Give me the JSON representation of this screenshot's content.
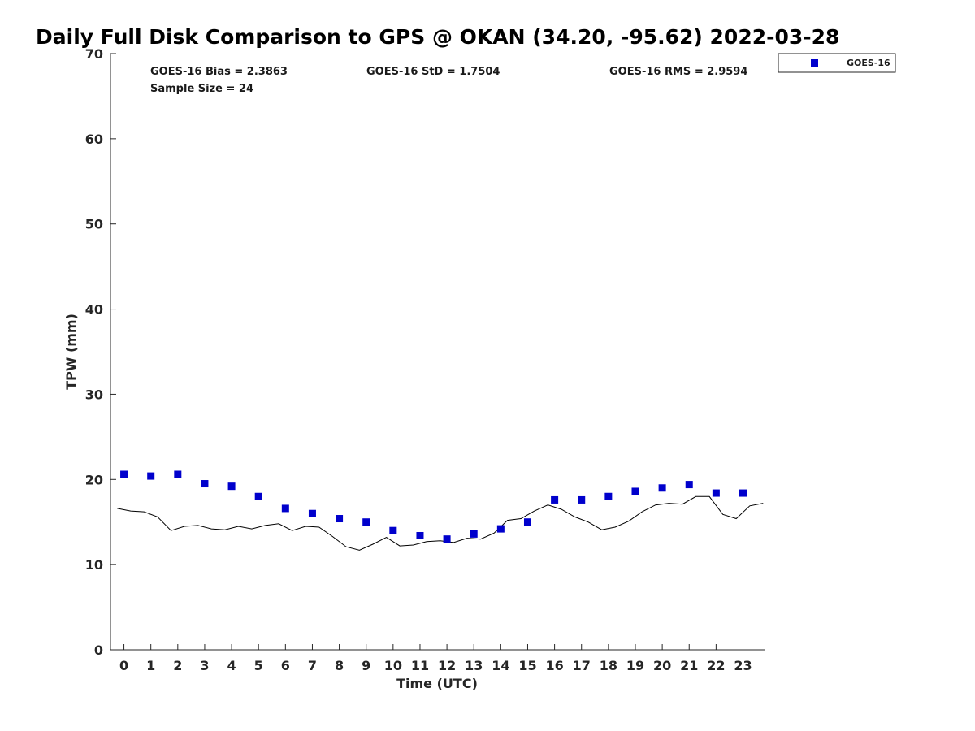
{
  "chart_data": {
    "type": "scatter",
    "title": "Daily Full Disk Comparison to GPS @ OKAN (34.20, -95.62) 2022-03-28",
    "xlabel": "Time (UTC)",
    "ylabel": "TPW (mm)",
    "xlim": [
      -0.5,
      23.8
    ],
    "ylim": [
      0,
      70
    ],
    "xticks": [
      0,
      1,
      2,
      3,
      4,
      5,
      6,
      7,
      8,
      9,
      10,
      11,
      12,
      13,
      14,
      15,
      16,
      17,
      18,
      19,
      20,
      21,
      22,
      23
    ],
    "yticks": [
      0,
      10,
      20,
      30,
      40,
      50,
      60,
      70
    ],
    "grid": false,
    "legend_position": "top-right",
    "stats": {
      "bias": "GOES-16 Bias = 2.3863",
      "std": "GOES-16 StD = 1.7504",
      "rms": "GOES-16 RMS = 2.9594",
      "sample": "Sample Size = 24"
    },
    "series": [
      {
        "name": "GOES-16",
        "kind": "marker",
        "marker": "square",
        "color": "#0000cc",
        "x": [
          0,
          1,
          2,
          3,
          4,
          5,
          6,
          7,
          8,
          9,
          10,
          11,
          12,
          13,
          14,
          15,
          16,
          17,
          18,
          19,
          20,
          21,
          22,
          23
        ],
        "y": [
          20.6,
          20.4,
          20.6,
          19.5,
          19.2,
          18.0,
          16.6,
          16.0,
          15.4,
          15.0,
          14.0,
          13.4,
          13.0,
          13.6,
          14.2,
          15.0,
          17.6,
          17.6,
          18.0,
          18.6,
          19.0,
          19.4,
          18.4,
          18.4
        ]
      },
      {
        "kind": "line",
        "color": "#000000",
        "x": [
          -0.25,
          0.25,
          0.75,
          1.25,
          1.75,
          2.25,
          2.75,
          3.25,
          3.75,
          4.25,
          4.75,
          5.25,
          5.75,
          6.25,
          6.75,
          7.25,
          7.75,
          8.25,
          8.75,
          9.25,
          9.75,
          10.25,
          10.75,
          11.25,
          11.75,
          12.25,
          12.75,
          13.25,
          13.75,
          14.25,
          14.75,
          15.25,
          15.75,
          16.25,
          16.75,
          17.25,
          17.75,
          18.25,
          18.75,
          19.25,
          19.75,
          20.25,
          20.75,
          21.25,
          21.75,
          22.25,
          22.75,
          23.25,
          23.75
        ],
        "y": [
          16.6,
          16.3,
          16.2,
          15.6,
          14.0,
          14.5,
          14.6,
          14.2,
          14.1,
          14.5,
          14.2,
          14.6,
          14.8,
          14.0,
          14.5,
          14.4,
          13.3,
          12.1,
          11.7,
          12.4,
          13.2,
          12.2,
          12.3,
          12.7,
          12.8,
          12.6,
          13.1,
          13.0,
          13.7,
          15.2,
          15.4,
          16.3,
          17.0,
          16.5,
          15.6,
          15.0,
          14.1,
          14.4,
          15.1,
          16.2,
          17.0,
          17.2,
          17.1,
          18.0,
          18.0,
          15.9,
          15.4,
          16.9,
          17.2
        ]
      }
    ]
  }
}
